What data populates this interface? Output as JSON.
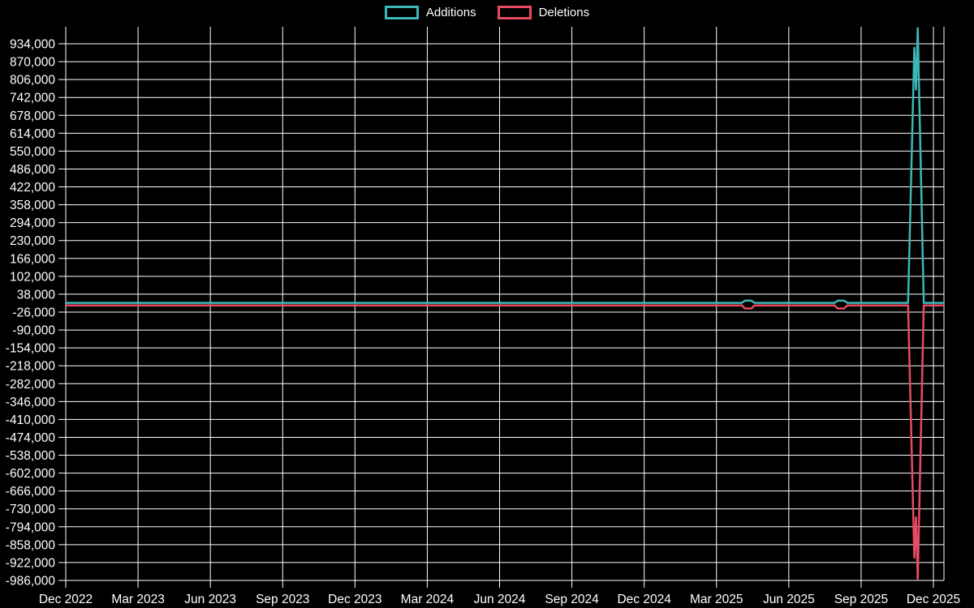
{
  "colors": {
    "background": "#000000",
    "grid": "#ffffff",
    "text": "#ffffff",
    "additions": "#3cb7b7",
    "deletions": "#e94a63"
  },
  "legend": {
    "items": [
      {
        "label": "Additions",
        "color": "#3cb7b7"
      },
      {
        "label": "Deletions",
        "color": "#e94a63"
      }
    ]
  },
  "chart_data": {
    "type": "line",
    "title": "",
    "xlabel": "",
    "ylabel": "",
    "grid": true,
    "legend_position": "top-center",
    "x_tick_labels": [
      "Dec 2022",
      "Mar 2023",
      "Jun 2023",
      "Sep 2023",
      "Dec 2023",
      "Mar 2024",
      "Jun 2024",
      "Sep 2024",
      "Dec 2024",
      "Mar 2025",
      "Jun 2025",
      "Sep 2025",
      "Dec 2025"
    ],
    "x_tick_months": [
      0,
      3,
      6,
      9,
      12,
      15,
      18,
      21,
      24,
      27,
      30,
      33,
      36
    ],
    "x_range_months": [
      0,
      36.44
    ],
    "y_ticks": [
      934000,
      870000,
      806000,
      742000,
      678000,
      614000,
      550000,
      486000,
      422000,
      358000,
      294000,
      230000,
      166000,
      102000,
      38000,
      -26000,
      -90000,
      -154000,
      -218000,
      -282000,
      -346000,
      -410000,
      -474000,
      -538000,
      -602000,
      -666000,
      -730000,
      -794000,
      -858000,
      -922000,
      -986000
    ],
    "ylim": [
      -986000,
      998000
    ],
    "series": [
      {
        "name": "Additions",
        "color": "#3cb7b7",
        "points": [
          [
            0,
            7000
          ],
          [
            28.05,
            7000
          ],
          [
            28.18,
            15000
          ],
          [
            28.45,
            15000
          ],
          [
            28.58,
            7000
          ],
          [
            31.9,
            7000
          ],
          [
            32.03,
            15000
          ],
          [
            32.3,
            15000
          ],
          [
            32.43,
            7000
          ],
          [
            34.95,
            7000
          ],
          [
            35.21,
            920000
          ],
          [
            35.28,
            770000
          ],
          [
            35.35,
            990000
          ],
          [
            35.6,
            7000
          ],
          [
            36.44,
            7000
          ]
        ]
      },
      {
        "name": "Deletions",
        "color": "#e94a63",
        "points": [
          [
            0,
            -2000
          ],
          [
            28.05,
            -2000
          ],
          [
            28.18,
            -13000
          ],
          [
            28.45,
            -13000
          ],
          [
            28.58,
            -2000
          ],
          [
            31.9,
            -2000
          ],
          [
            32.03,
            -13000
          ],
          [
            32.3,
            -13000
          ],
          [
            32.43,
            -2000
          ],
          [
            34.95,
            -2000
          ],
          [
            35.21,
            -905000
          ],
          [
            35.28,
            -760000
          ],
          [
            35.35,
            -980000
          ],
          [
            35.6,
            -2000
          ],
          [
            36.44,
            -2000
          ]
        ]
      }
    ]
  }
}
